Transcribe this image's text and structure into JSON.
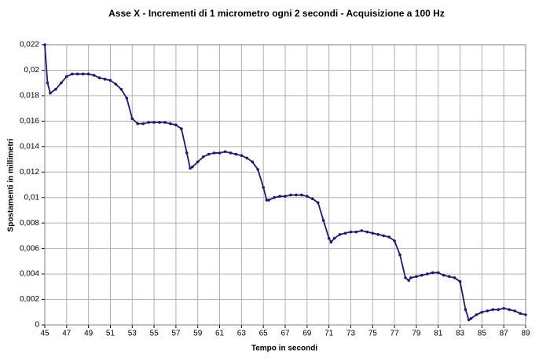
{
  "chart_data": {
    "type": "line",
    "title": "Asse X - Incrementi di 1 micrometro ogni 2 secondi - Acquisizione a 100 Hz",
    "x_label": "Tempo in secondi",
    "y_label": "Spostamenti in millimetri",
    "x": [
      45,
      45.25,
      45.5,
      46,
      46.5,
      47,
      47.5,
      48,
      48.5,
      49,
      49.5,
      50,
      50.5,
      51,
      51.5,
      52,
      52.5,
      53,
      53.5,
      54,
      54.5,
      55,
      55.5,
      56,
      56.5,
      57,
      57.5,
      58,
      58.3,
      58.5,
      59,
      59.5,
      60,
      60.5,
      61,
      61.5,
      62,
      62.5,
      63,
      63.5,
      64,
      64.5,
      65,
      65.3,
      65.5,
      66,
      66.5,
      67,
      67.5,
      68,
      68.5,
      69,
      69.5,
      70,
      70.5,
      71,
      71.2,
      71.5,
      72,
      72.5,
      73,
      73.5,
      74,
      74.5,
      75,
      75.5,
      76,
      76.5,
      77,
      77.5,
      78,
      78.3,
      78.5,
      79,
      79.5,
      80,
      80.5,
      81,
      81.5,
      82,
      82.5,
      83,
      83.5,
      83.8,
      84,
      84.5,
      85,
      85.5,
      86,
      86.5,
      87,
      87.5,
      88,
      88.5,
      89
    ],
    "series": [
      {
        "name": "Asse X",
        "color": "#1c1c6e",
        "values": [
          0.022,
          0.019,
          0.0182,
          0.0185,
          0.019,
          0.0195,
          0.0197,
          0.0197,
          0.0197,
          0.0197,
          0.0196,
          0.0194,
          0.0193,
          0.0192,
          0.0189,
          0.0185,
          0.0178,
          0.0162,
          0.0158,
          0.0158,
          0.0159,
          0.0159,
          0.0159,
          0.0159,
          0.0158,
          0.0157,
          0.0154,
          0.0135,
          0.0123,
          0.0124,
          0.0128,
          0.0132,
          0.0134,
          0.0135,
          0.0135,
          0.0136,
          0.0135,
          0.0134,
          0.0133,
          0.0131,
          0.0128,
          0.0122,
          0.0108,
          0.0098,
          0.0098,
          0.01,
          0.0101,
          0.0101,
          0.0102,
          0.0102,
          0.0102,
          0.0101,
          0.0099,
          0.0096,
          0.0082,
          0.0068,
          0.0065,
          0.0068,
          0.0071,
          0.0072,
          0.0073,
          0.0073,
          0.0074,
          0.0073,
          0.0072,
          0.0071,
          0.007,
          0.0069,
          0.0066,
          0.0055,
          0.0037,
          0.0035,
          0.0037,
          0.0038,
          0.0039,
          0.004,
          0.0041,
          0.0041,
          0.0039,
          0.0038,
          0.0037,
          0.0034,
          0.0012,
          0.0004,
          0.0005,
          0.0008,
          0.001,
          0.0011,
          0.0012,
          0.0012,
          0.0013,
          0.0012,
          0.0011,
          0.0009,
          0.0008
        ]
      }
    ],
    "xlim": [
      45,
      89
    ],
    "xticks": [
      45,
      47,
      49,
      51,
      53,
      55,
      57,
      59,
      61,
      63,
      65,
      67,
      69,
      71,
      73,
      75,
      77,
      79,
      81,
      83,
      85,
      87,
      89
    ],
    "ylim": [
      0,
      0.022
    ],
    "yticks": [
      0,
      {
        "value": 0.002,
        "label": "0,002"
      },
      {
        "value": 0.004,
        "label": "0,004"
      },
      {
        "value": 0.006,
        "label": "0,006"
      },
      {
        "value": 0.008,
        "label": "0,008"
      },
      {
        "value": 0.01,
        "label": "0,01"
      },
      {
        "value": 0.012,
        "label": "0,012"
      },
      {
        "value": 0.014,
        "label": "0,014"
      },
      {
        "value": 0.016,
        "label": "0,016"
      },
      {
        "value": 0.018,
        "label": "0,018"
      },
      {
        "value": 0.02,
        "label": "0,02"
      },
      {
        "value": 0.022,
        "label": "0,022"
      }
    ],
    "grid": true
  }
}
